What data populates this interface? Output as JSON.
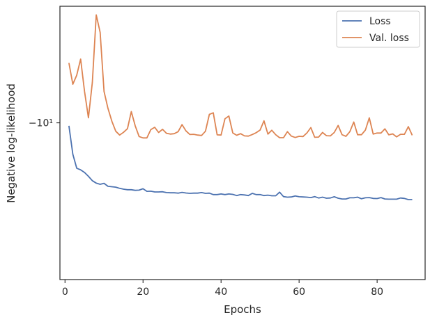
{
  "chart_data": {
    "type": "line",
    "xlabel": "Epochs",
    "ylabel": "Negative log-likelihood",
    "y_scale": "symlog",
    "grid": false,
    "legend_position": "top-right",
    "xlim": [
      -1.3,
      92.3
    ],
    "ylim": [
      -9.22,
      -10.58
    ],
    "x_ticks": [
      0,
      20,
      40,
      60,
      80
    ],
    "x_tick_labels": [
      "0",
      "20",
      "40",
      "60",
      "80"
    ],
    "y_ticks": [
      -10
    ],
    "y_tick_labels": [
      "−10¹"
    ],
    "series": [
      {
        "name": "Loss",
        "color": "#4c72b0",
        "x": [
          1,
          2,
          3,
          4,
          5,
          6,
          7,
          8,
          9,
          10,
          11,
          12,
          13,
          14,
          15,
          16,
          17,
          18,
          19,
          20,
          21,
          22,
          23,
          24,
          25,
          26,
          27,
          28,
          29,
          30,
          31,
          32,
          33,
          34,
          35,
          36,
          37,
          38,
          39,
          40,
          41,
          42,
          43,
          44,
          45,
          46,
          47,
          48,
          49,
          50,
          51,
          52,
          53,
          54,
          55,
          56,
          57,
          58,
          59,
          60,
          61,
          62,
          63,
          64,
          65,
          66,
          67,
          68,
          69,
          70,
          71,
          72,
          73,
          74,
          75,
          76,
          77,
          78,
          79,
          80,
          81,
          82,
          83,
          84,
          85,
          86,
          87,
          88,
          89
        ],
        "y": [
          -9.985,
          -9.844,
          -9.774,
          -9.766,
          -9.753,
          -9.734,
          -9.712,
          -9.7,
          -9.694,
          -9.699,
          -9.684,
          -9.682,
          -9.68,
          -9.674,
          -9.67,
          -9.667,
          -9.667,
          -9.664,
          -9.665,
          -9.672,
          -9.659,
          -9.66,
          -9.656,
          -9.656,
          -9.657,
          -9.653,
          -9.652,
          -9.652,
          -9.65,
          -9.654,
          -9.651,
          -9.649,
          -9.65,
          -9.65,
          -9.653,
          -9.649,
          -9.65,
          -9.643,
          -9.643,
          -9.646,
          -9.643,
          -9.646,
          -9.644,
          -9.638,
          -9.643,
          -9.641,
          -9.638,
          -9.649,
          -9.643,
          -9.643,
          -9.638,
          -9.64,
          -9.637,
          -9.637,
          -9.655,
          -9.633,
          -9.63,
          -9.631,
          -9.636,
          -9.632,
          -9.631,
          -9.63,
          -9.628,
          -9.633,
          -9.626,
          -9.63,
          -9.625,
          -9.626,
          -9.632,
          -9.625,
          -9.621,
          -9.621,
          -9.627,
          -9.627,
          -9.63,
          -9.622,
          -9.627,
          -9.628,
          -9.624,
          -9.623,
          -9.628,
          -9.621,
          -9.62,
          -9.62,
          -9.62,
          -9.626,
          -9.624,
          -9.618,
          -9.618
        ]
      },
      {
        "name": "Val. loss",
        "color": "#dd8452",
        "x": [
          1,
          2,
          3,
          4,
          5,
          6,
          7,
          8,
          9,
          10,
          11,
          12,
          13,
          14,
          15,
          16,
          17,
          18,
          19,
          20,
          21,
          22,
          23,
          24,
          25,
          26,
          27,
          28,
          29,
          30,
          31,
          32,
          33,
          34,
          35,
          36,
          37,
          38,
          39,
          40,
          41,
          42,
          43,
          44,
          45,
          46,
          47,
          48,
          49,
          50,
          51,
          52,
          53,
          54,
          55,
          56,
          57,
          58,
          59,
          60,
          61,
          62,
          63,
          64,
          65,
          66,
          67,
          68,
          69,
          70,
          71,
          72,
          73,
          74,
          75,
          76,
          77,
          78,
          79,
          80,
          81,
          82,
          83,
          84,
          85,
          86,
          87,
          88,
          89
        ],
        "y": [
          -10.298,
          -10.192,
          -10.237,
          -10.317,
          -10.156,
          -10.025,
          -10.201,
          -10.537,
          -10.45,
          -10.156,
          -10.072,
          -10.008,
          -9.958,
          -9.939,
          -9.953,
          -9.971,
          -10.056,
          -9.985,
          -9.932,
          -9.925,
          -9.925,
          -9.966,
          -9.978,
          -9.952,
          -9.968,
          -9.948,
          -9.944,
          -9.946,
          -9.956,
          -9.991,
          -9.96,
          -9.942,
          -9.943,
          -9.939,
          -9.937,
          -9.958,
          -10.042,
          -10.05,
          -9.94,
          -9.939,
          -10.02,
          -10.034,
          -9.95,
          -9.938,
          -9.946,
          -9.935,
          -9.934,
          -9.942,
          -9.951,
          -9.964,
          -10.01,
          -9.944,
          -9.963,
          -9.941,
          -9.926,
          -9.926,
          -9.956,
          -9.934,
          -9.927,
          -9.933,
          -9.932,
          -9.95,
          -9.976,
          -9.928,
          -9.929,
          -9.952,
          -9.936,
          -9.935,
          -9.952,
          -9.987,
          -9.941,
          -9.933,
          -9.956,
          -10.004,
          -9.941,
          -9.941,
          -9.964,
          -10.025,
          -9.944,
          -9.949,
          -9.949,
          -9.97,
          -9.94,
          -9.945,
          -9.93,
          -9.943,
          -9.943,
          -9.981,
          -9.938
        ]
      }
    ]
  }
}
